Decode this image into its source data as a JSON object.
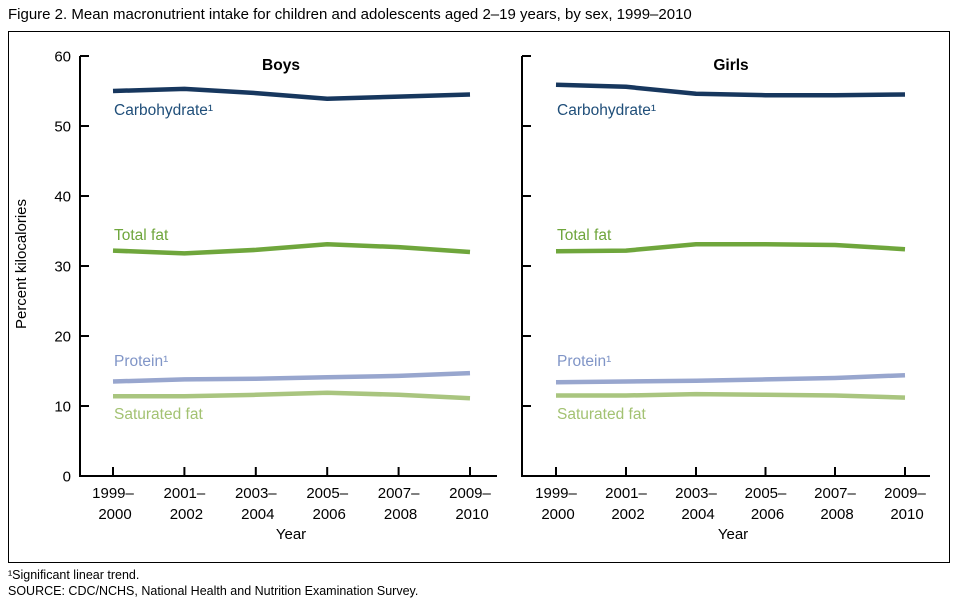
{
  "figure": {
    "title": "Figure 2. Mean macronutrient intake for children and adolescents aged 2–19 years, by sex, 1999–2010",
    "footnotes": [
      "¹Significant linear trend.",
      "SOURCE: CDC/NCHS, National Health and Nutrition Examination Survey."
    ]
  },
  "chart_data": {
    "type": "line",
    "title": "Mean macronutrient intake for children and adolescents aged 2–19 years, by sex, 1999–2010",
    "xlabel": "Year",
    "ylabel": "Percent kilocalories",
    "ylim": [
      0,
      60
    ],
    "yticks": [
      0,
      10,
      20,
      30,
      40,
      50,
      60
    ],
    "grid": false,
    "legend_position": "inline-labels",
    "categories": [
      "1999–2000",
      "2001–2002",
      "2003–2004",
      "2005–2006",
      "2007–2008",
      "2009–2010"
    ],
    "panels": [
      {
        "title": "Boys",
        "series": [
          {
            "name": "Carbohydrate",
            "label": "Carbohydrate¹",
            "color": "#17375E",
            "label_color": "#1F4E79",
            "values": [
              55.0,
              55.3,
              54.7,
              53.9,
              54.2,
              54.5
            ]
          },
          {
            "name": "Total fat",
            "label": "Total fat",
            "color": "#6FA63C",
            "label_color": "#6FA63C",
            "values": [
              32.2,
              31.8,
              32.3,
              33.1,
              32.7,
              32.0
            ]
          },
          {
            "name": "Protein",
            "label": "Protein¹",
            "color": "#98A6CE",
            "label_color": "#8095C7",
            "values": [
              13.5,
              13.8,
              13.9,
              14.1,
              14.3,
              14.7
            ]
          },
          {
            "name": "Saturated fat",
            "label": "Saturated fat",
            "color": "#A9C57F",
            "label_color": "#A3C272",
            "values": [
              11.4,
              11.4,
              11.6,
              11.9,
              11.6,
              11.1
            ]
          }
        ]
      },
      {
        "title": "Girls",
        "series": [
          {
            "name": "Carbohydrate",
            "label": "Carbohydrate¹",
            "color": "#17375E",
            "label_color": "#1F4E79",
            "values": [
              55.9,
              55.6,
              54.6,
              54.4,
              54.4,
              54.5
            ]
          },
          {
            "name": "Total fat",
            "label": "Total fat",
            "color": "#6FA63C",
            "label_color": "#6FA63C",
            "values": [
              32.1,
              32.2,
              33.1,
              33.1,
              33.0,
              32.4
            ]
          },
          {
            "name": "Protein",
            "label": "Protein¹",
            "color": "#98A6CE",
            "label_color": "#8095C7",
            "values": [
              13.4,
              13.5,
              13.6,
              13.8,
              14.0,
              14.4
            ]
          },
          {
            "name": "Saturated fat",
            "label": "Saturated fat",
            "color": "#A9C57F",
            "label_color": "#A3C272",
            "values": [
              11.5,
              11.5,
              11.7,
              11.6,
              11.5,
              11.2
            ]
          }
        ]
      }
    ]
  }
}
